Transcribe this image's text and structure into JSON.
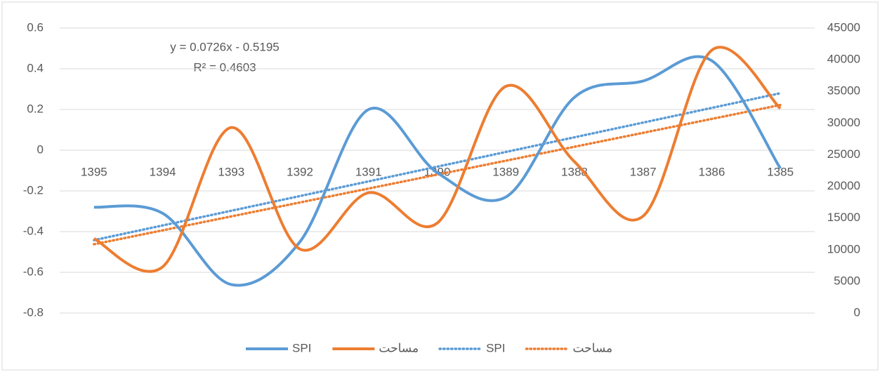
{
  "chart_data": {
    "type": "line",
    "categories": [
      "1395",
      "1394",
      "1393",
      "1392",
      "1391",
      "1390",
      "1389",
      "1388",
      "1387",
      "1386",
      "1385"
    ],
    "series": [
      {
        "name": "SPI",
        "color": "#5b9bd5",
        "values": [
          -0.28,
          -0.31,
          -0.66,
          -0.45,
          0.2,
          -0.11,
          -0.23,
          0.26,
          0.34,
          0.44,
          -0.09
        ]
      },
      {
        "name": "مساحت",
        "color": "#ed7d31",
        "axis": "y2",
        "values": [
          11750,
          7300,
          29300,
          10100,
          19000,
          14200,
          35800,
          23900,
          15300,
          41500,
          32300
        ]
      }
    ],
    "trendlines": [
      {
        "name": "SPI",
        "color": "#5b9bd5",
        "series": 0
      },
      {
        "name": "مساحت",
        "color": "#ed7d31",
        "series": 1
      }
    ],
    "annotations": [
      "y = 0.0726x - 0.5195",
      "R² = 0.4603"
    ],
    "ylim": [
      -0.8,
      0.6
    ],
    "yticks": [
      -0.8,
      -0.6,
      -0.4,
      -0.2,
      {
        "value": 0,
        "label": "0"
      },
      0.2,
      0.4,
      0.6
    ],
    "y2lim": [
      0,
      45000
    ],
    "y2ticks": [
      0,
      5000,
      10000,
      15000,
      20000,
      25000,
      30000,
      35000,
      40000,
      45000
    ],
    "grid": true
  }
}
